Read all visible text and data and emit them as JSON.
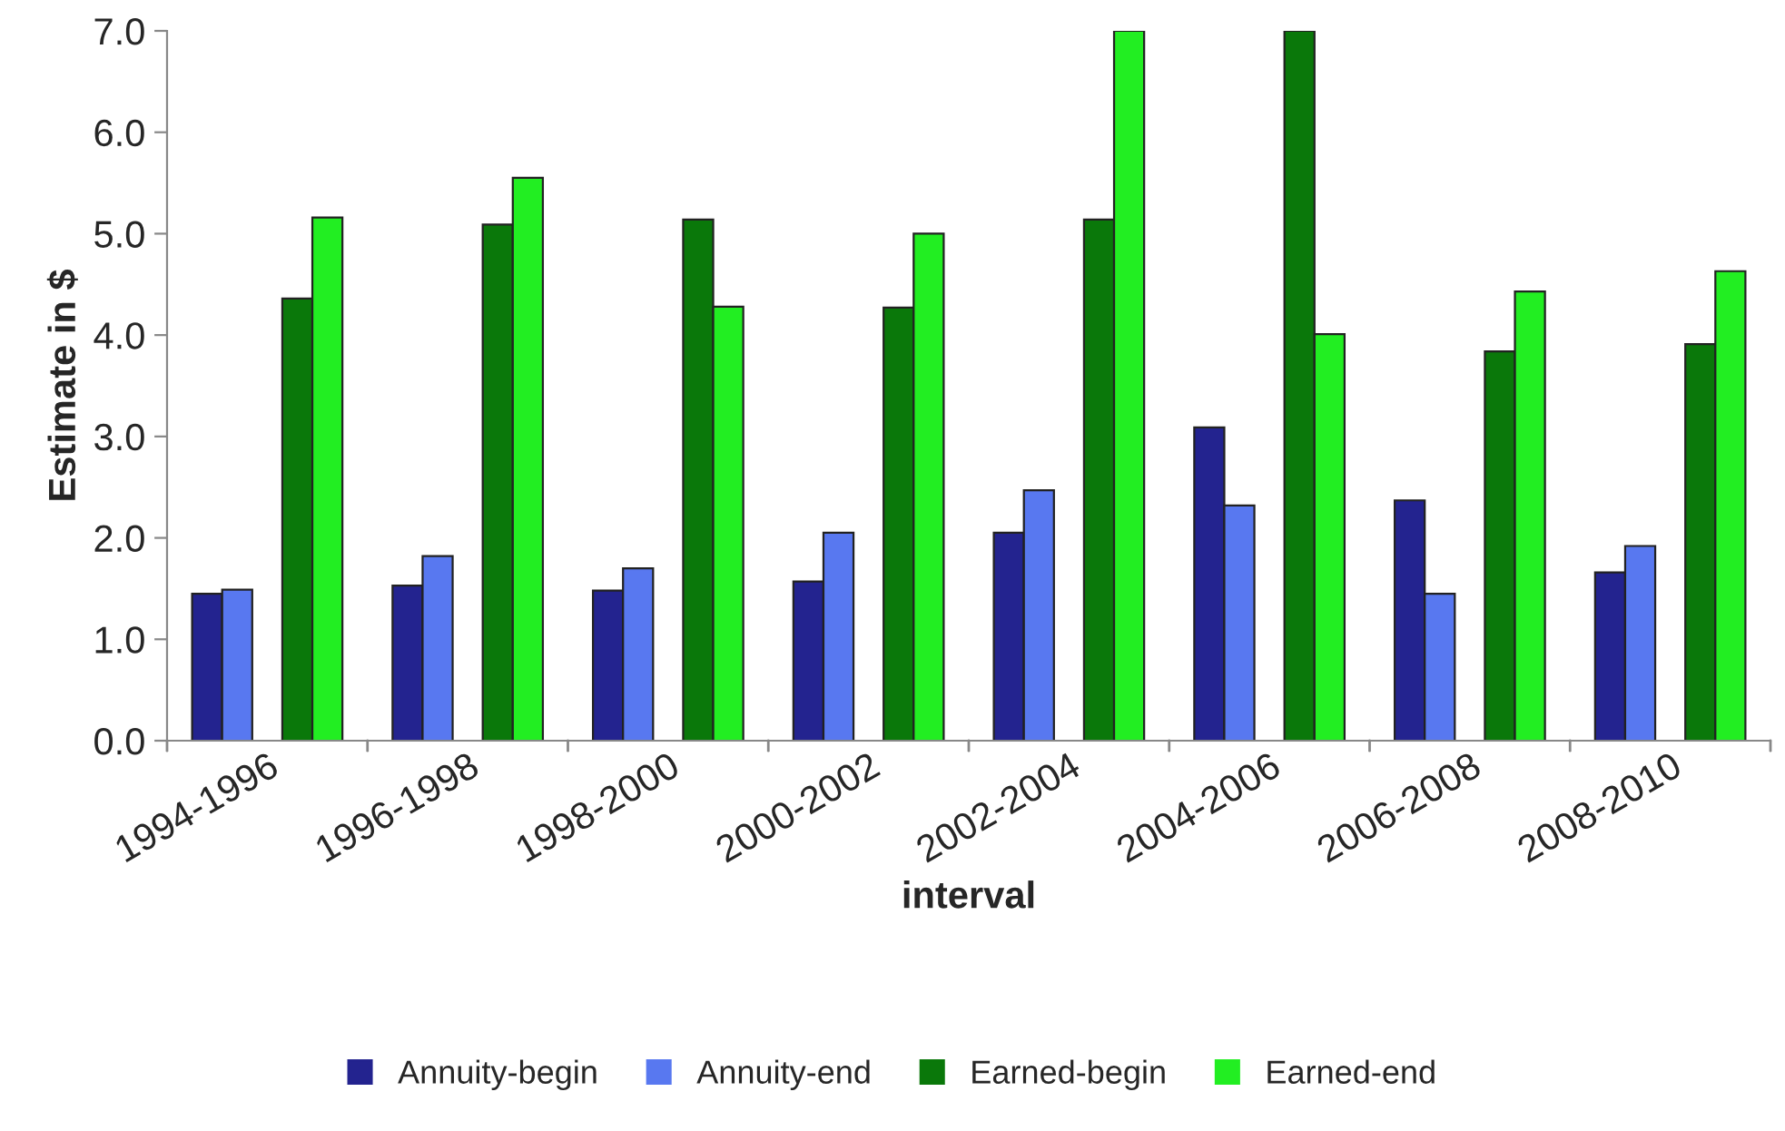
{
  "chart_data": {
    "type": "bar",
    "xlabel": "interval",
    "ylabel": "Estimate in $",
    "categories": [
      "1994-1996",
      "1996-1998",
      "1998-2000",
      "2000-2002",
      "2002-2004",
      "2004-2006",
      "2006-2008",
      "2008-2010"
    ],
    "series": [
      {
        "name": "Annuity-begin",
        "color": "#23238f",
        "values": [
          1.45,
          1.53,
          1.48,
          1.57,
          2.05,
          3.09,
          2.37,
          1.66
        ]
      },
      {
        "name": "Annuity-end",
        "color": "#5878f0",
        "values": [
          1.49,
          1.82,
          1.7,
          2.05,
          2.47,
          2.32,
          1.45,
          1.92
        ]
      },
      {
        "name": "Earned-begin",
        "color": "#0a780a",
        "values": [
          4.36,
          5.09,
          5.14,
          4.27,
          5.14,
          7.0,
          3.84,
          3.91
        ]
      },
      {
        "name": "Earned-end",
        "color": "#22ee22",
        "values": [
          5.16,
          5.55,
          4.28,
          5.0,
          7.0,
          4.01,
          4.43,
          4.63
        ]
      }
    ],
    "ylim": [
      0,
      7
    ],
    "yticks": [
      {
        "value": 0,
        "label": "0.0"
      },
      {
        "value": 1,
        "label": "1.0"
      },
      {
        "value": 2,
        "label": "2.0"
      },
      {
        "value": 3,
        "label": "3.0"
      },
      {
        "value": 4,
        "label": "4.0"
      },
      {
        "value": 5,
        "label": "5.0"
      },
      {
        "value": 6,
        "label": "6.0"
      },
      {
        "value": 7,
        "label": "7.0"
      }
    ],
    "grid": false,
    "legend": "bottom"
  }
}
